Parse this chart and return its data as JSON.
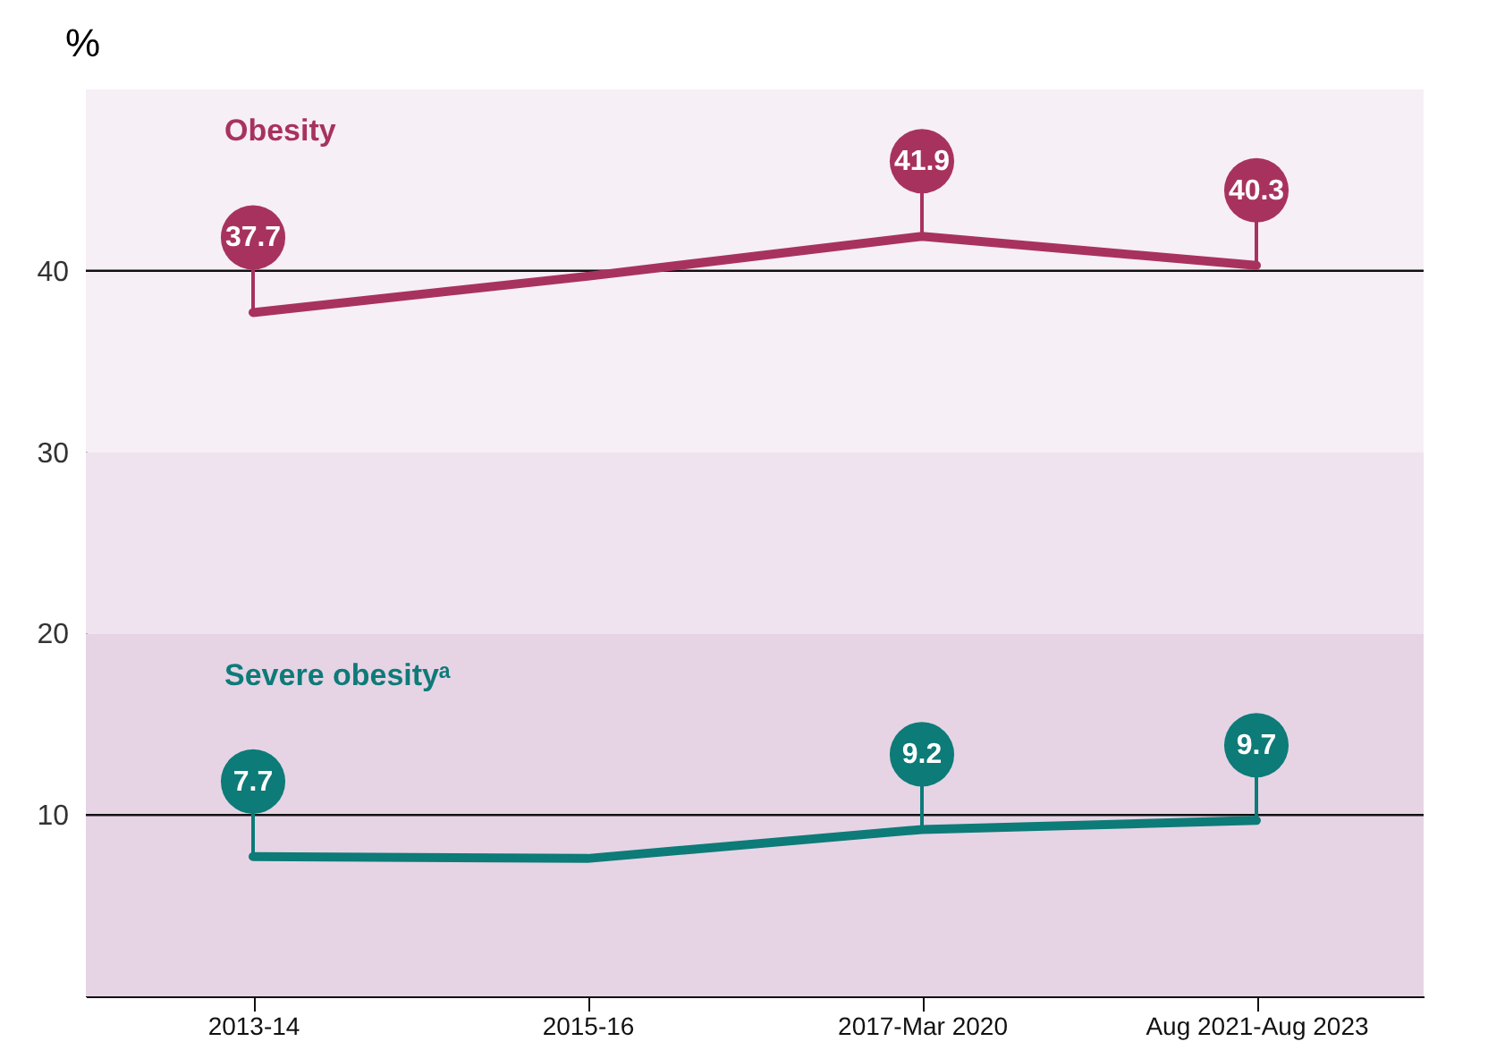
{
  "chart_data": {
    "type": "line",
    "ylabel": "%",
    "categories": [
      "2013-14",
      "2015-16",
      "2017-Mar 2020",
      "Aug 2021-Aug 2023"
    ],
    "ylim": [
      0,
      50
    ],
    "yticks": [
      10,
      20,
      30,
      40
    ],
    "series": [
      {
        "name": "Obesity",
        "color": "#a8325e",
        "values": [
          37.7,
          39.7,
          41.9,
          40.3
        ],
        "value_labels": [
          "37.7",
          null,
          "41.9",
          "40.3"
        ]
      },
      {
        "name": "Severe obesityᵃ",
        "color": "#0d7b78",
        "values": [
          7.7,
          7.6,
          9.2,
          9.7
        ],
        "value_labels": [
          "7.7",
          null,
          "9.2",
          "9.7"
        ]
      }
    ],
    "bands": [
      {
        "axis": "y",
        "from": 30,
        "to": 50,
        "color": "#f6eff5"
      },
      {
        "axis": "y",
        "from": 20,
        "to": 30,
        "color": "#efe3ef"
      },
      {
        "axis": "y",
        "from": 0,
        "to": 20,
        "color": "#e6d4e5"
      }
    ],
    "ref_lines": [
      {
        "axis": "y",
        "value": 10
      },
      {
        "axis": "y",
        "value": 40
      }
    ],
    "legend": false,
    "grid": false,
    "marker": "none",
    "line_style": "solid"
  }
}
